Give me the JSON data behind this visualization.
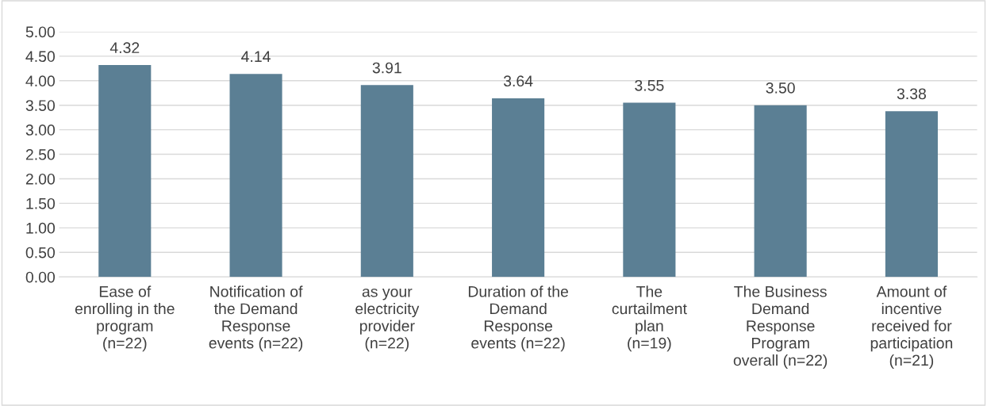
{
  "chart_data": {
    "type": "bar",
    "categories": [
      "Ease of\nenrolling in the\nprogram\n(n=22)",
      "Notification of\nthe Demand\nResponse\nevents (n=22)",
      "as your\nelectricity\nprovider\n(n=22)",
      "Duration of the\nDemand\nResponse\nevents (n=22)",
      "The\ncurtailment\nplan\n(n=19)",
      "The Business\nDemand\nResponse\nProgram\noverall (n=22)",
      "Amount of\nincentive\nreceived for\nparticipation\n(n=21)"
    ],
    "values": [
      4.32,
      4.14,
      3.91,
      3.64,
      3.55,
      3.5,
      3.38
    ],
    "value_labels": [
      "4.32",
      "4.14",
      "3.91",
      "3.64",
      "3.55",
      "3.50",
      "3.38"
    ],
    "color": "#5b7f94",
    "ylim": [
      0,
      5
    ],
    "yticks": [
      {
        "value": 0,
        "label": "0.00"
      },
      {
        "value": 0.5,
        "label": "0.50"
      },
      {
        "value": 1,
        "label": "1.00"
      },
      {
        "value": 1.5,
        "label": "1.50"
      },
      {
        "value": 2,
        "label": "2.00"
      },
      {
        "value": 2.5,
        "label": "2.50"
      },
      {
        "value": 3,
        "label": "3.00"
      },
      {
        "value": 3.5,
        "label": "3.50"
      },
      {
        "value": 4,
        "label": "4.00"
      },
      {
        "value": 4.5,
        "label": "4.50"
      },
      {
        "value": 5,
        "label": "5.00"
      }
    ],
    "grid": "y"
  }
}
